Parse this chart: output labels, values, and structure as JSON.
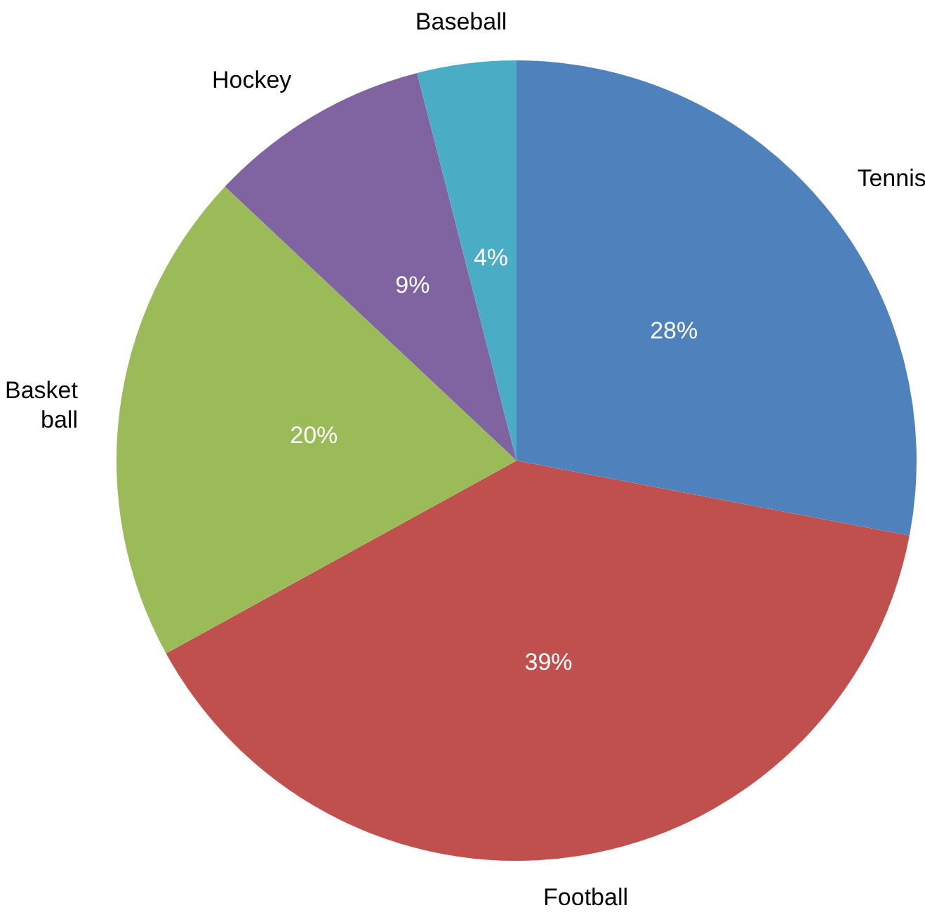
{
  "chart_data": {
    "type": "pie",
    "categories": [
      "Tennis",
      "Football",
      "Basket\nball",
      "Hockey",
      "Baseball"
    ],
    "values": [
      28,
      39,
      20,
      9,
      4
    ],
    "colors": [
      "#4f81bd",
      "#c0504d",
      "#9bbb59",
      "#8064a2",
      "#4bacc6"
    ],
    "value_labels": [
      "28%",
      "39%",
      "20%",
      "9%",
      "4%"
    ],
    "legend": false
  }
}
